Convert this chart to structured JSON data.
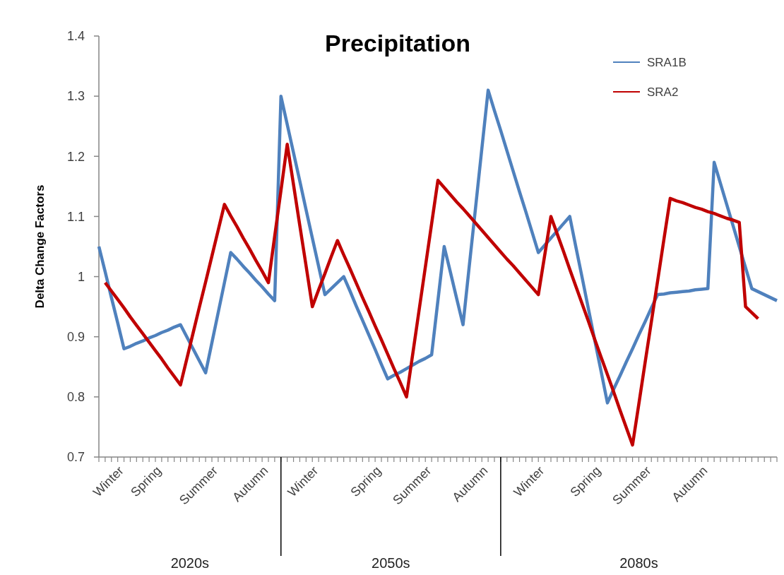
{
  "chart_data": {
    "type": "line",
    "title": "Precipitation",
    "ylabel": "Delta Change Factors",
    "ylim": [
      0.7,
      1.4
    ],
    "yticks": [
      0.7,
      0.8,
      0.9,
      {
        "value": 1,
        "label": "1"
      },
      1.1,
      1.2,
      1.3,
      1.4
    ],
    "categories": [
      null,
      null,
      null,
      null,
      "Winter",
      null,
      null,
      null,
      null,
      null,
      "Spring",
      null,
      null,
      null,
      null,
      null,
      null,
      null,
      null,
      "Summer",
      null,
      null,
      null,
      null,
      null,
      null,
      null,
      "Autumn",
      null,
      null,
      null,
      null,
      null,
      null,
      null,
      "Winter",
      null,
      null,
      null,
      null,
      null,
      null,
      null,
      null,
      null,
      "Spring",
      null,
      null,
      null,
      null,
      null,
      null,
      null,
      "Summer",
      null,
      null,
      null,
      null,
      null,
      null,
      null,
      null,
      "Autumn",
      null,
      null,
      null,
      null,
      null,
      null,
      null,
      null,
      "Winter",
      null,
      null,
      null,
      null,
      null,
      null,
      null,
      null,
      "Spring",
      null,
      null,
      null,
      null,
      null,
      null,
      null,
      "Summer",
      null,
      null,
      null,
      null,
      null,
      null,
      null,
      null,
      "Autumn",
      null,
      null,
      null,
      null,
      null,
      null,
      null,
      null,
      null,
      null,
      null
    ],
    "annotations": [
      "2020s",
      "2050s",
      "2080s"
    ],
    "legend": "top right",
    "grid": false,
    "marker": "none",
    "series": [
      {
        "name": "SRA1B",
        "color": "#4f81bd",
        "values": [
          1.05,
          1.008,
          0.965,
          0.923,
          0.88,
          0.884,
          0.889,
          0.893,
          0.898,
          0.902,
          0.907,
          0.911,
          0.916,
          0.92,
          0.9,
          0.88,
          0.86,
          0.84,
          0.89,
          0.94,
          0.99,
          1.04,
          1.029,
          1.017,
          1.006,
          0.994,
          0.983,
          0.971,
          0.96,
          1.3,
          1.253,
          1.206,
          1.159,
          1.111,
          1.064,
          1.017,
          0.97,
          0.98,
          0.99,
          1.0,
          0.976,
          0.951,
          0.927,
          0.903,
          0.879,
          0.854,
          0.83,
          0.836,
          0.841,
          0.847,
          0.853,
          0.859,
          0.864,
          0.87,
          0.96,
          1.05,
          1.007,
          0.963,
          0.92,
          1.018,
          1.115,
          1.213,
          1.31,
          1.276,
          1.243,
          1.209,
          1.175,
          1.141,
          1.108,
          1.074,
          1.04,
          1.052,
          1.064,
          1.076,
          1.088,
          1.1,
          1.048,
          0.997,
          0.945,
          0.893,
          0.842,
          0.79,
          0.813,
          0.835,
          0.858,
          0.88,
          0.903,
          0.925,
          0.948,
          0.97,
          0.971,
          0.973,
          0.974,
          0.975,
          0.976,
          0.978,
          0.979,
          0.98,
          1.19,
          1.155,
          1.12,
          1.085,
          1.05,
          1.015,
          0.98,
          0.975,
          0.97,
          0.965,
          0.96
        ]
      },
      {
        "name": "SRA2",
        "color": "#c00000",
        "values": [
          null,
          0.99,
          0.976,
          0.962,
          0.948,
          0.933,
          0.919,
          0.905,
          0.891,
          0.877,
          0.863,
          0.848,
          0.834,
          0.82,
          0.863,
          0.906,
          0.949,
          0.991,
          1.034,
          1.077,
          1.12,
          1.101,
          1.083,
          1.064,
          1.046,
          1.027,
          1.009,
          0.99,
          1.067,
          1.143,
          1.22,
          1.153,
          1.085,
          1.018,
          0.95,
          0.978,
          1.005,
          1.033,
          1.06,
          1.036,
          1.013,
          0.989,
          0.965,
          0.942,
          0.918,
          0.895,
          0.871,
          0.847,
          0.824,
          0.8,
          0.872,
          0.944,
          1.016,
          1.088,
          1.16,
          1.148,
          1.136,
          1.124,
          1.113,
          1.101,
          1.089,
          1.077,
          1.065,
          1.053,
          1.041,
          1.029,
          1.018,
          1.006,
          0.994,
          0.982,
          0.97,
          1.035,
          1.1,
          1.071,
          1.042,
          1.012,
          0.983,
          0.954,
          0.925,
          0.895,
          0.866,
          0.837,
          0.808,
          0.778,
          0.749,
          0.72,
          0.788,
          0.857,
          0.925,
          0.993,
          1.062,
          1.13,
          1.126,
          1.123,
          1.119,
          1.115,
          1.112,
          1.108,
          1.105,
          1.101,
          1.097,
          1.094,
          1.09,
          0.95,
          0.94,
          0.93,
          null,
          null,
          null
        ]
      }
    ]
  }
}
